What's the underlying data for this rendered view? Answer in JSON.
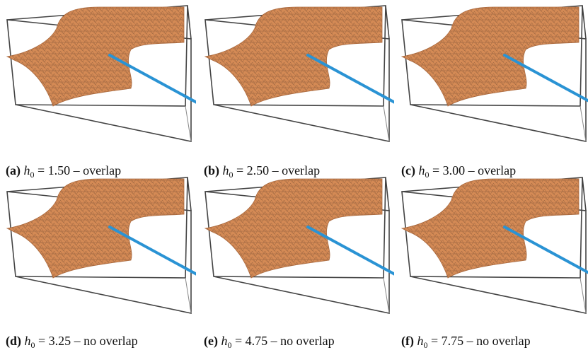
{
  "panels": [
    {
      "tag": "(a)",
      "symbol": "h",
      "subscript": "0",
      "text": "= 1.50 – overlap"
    },
    {
      "tag": "(b)",
      "symbol": "h",
      "subscript": "0",
      "text": "= 2.50 – overlap"
    },
    {
      "tag": "(c)",
      "symbol": "h",
      "subscript": "0",
      "text": "= 3.00 – overlap"
    },
    {
      "tag": "(d)",
      "symbol": "h",
      "subscript": "0",
      "text": "= 3.25 – no overlap"
    },
    {
      "tag": "(e)",
      "symbol": "h",
      "subscript": "0",
      "text": "= 4.75 – no overlap"
    },
    {
      "tag": "(f)",
      "symbol": "h",
      "subscript": "0",
      "text": "= 7.75 – no overlap"
    }
  ]
}
